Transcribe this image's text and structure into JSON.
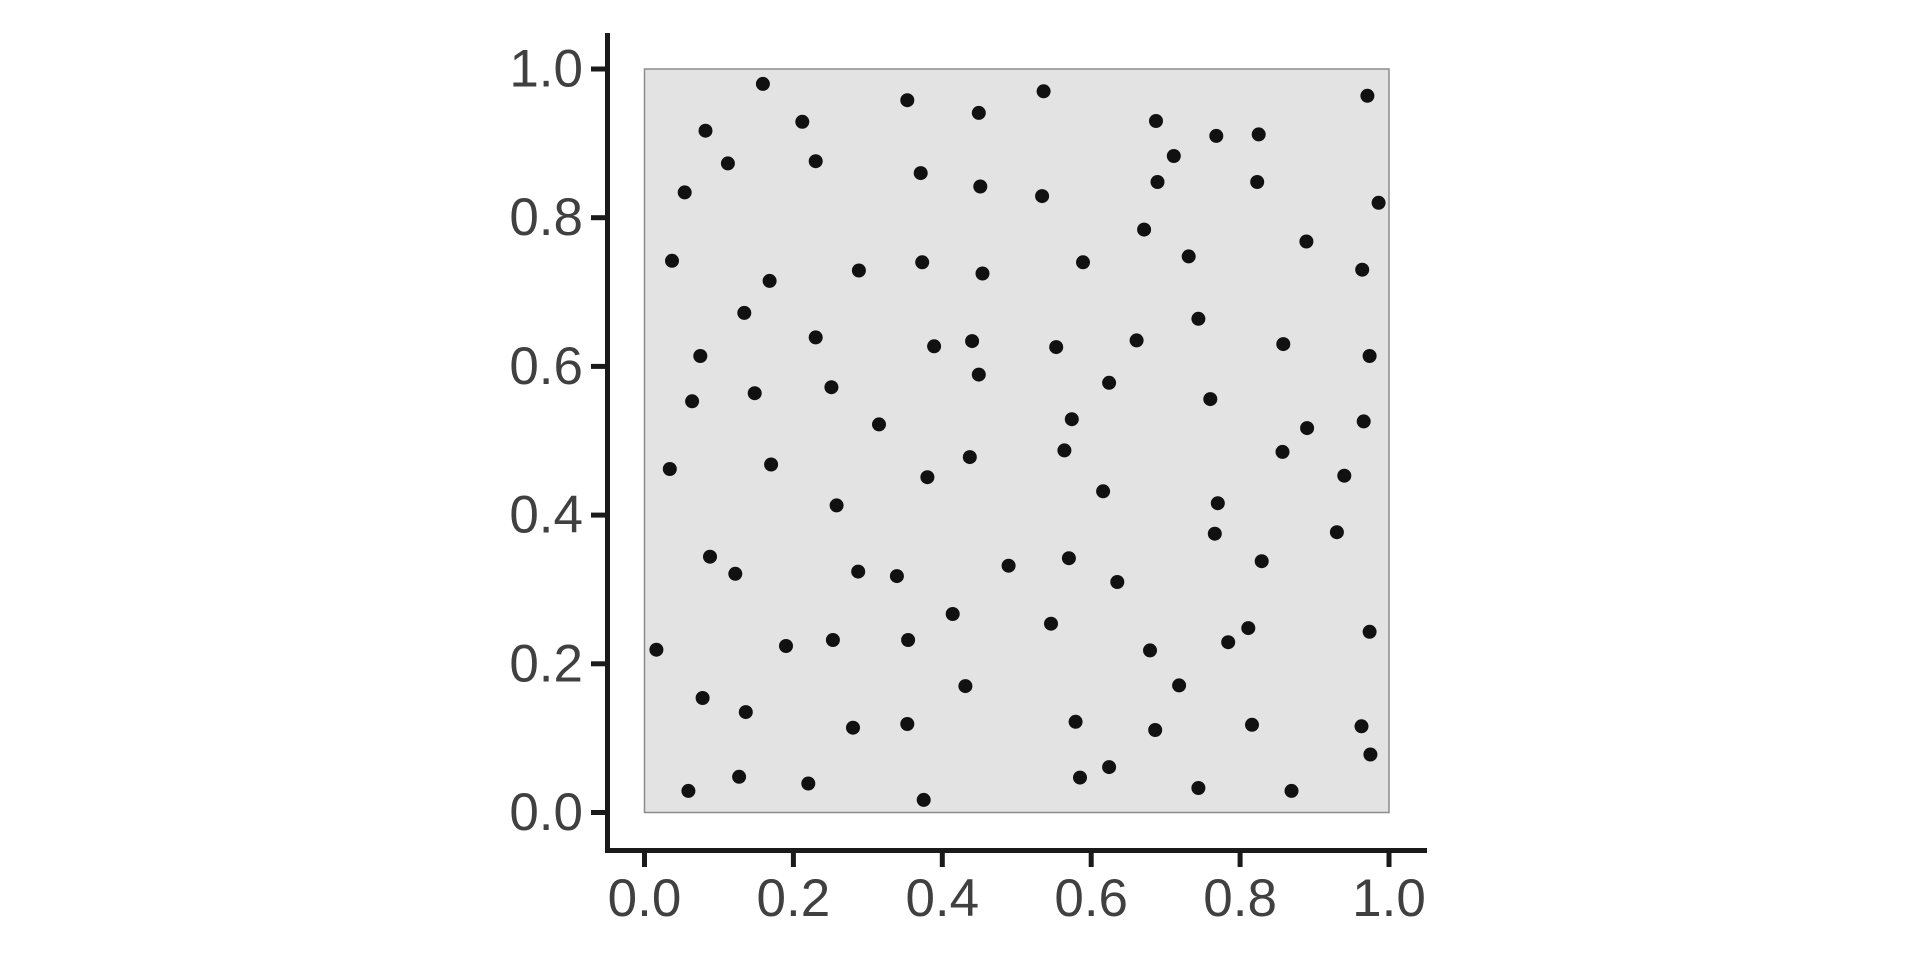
{
  "chart_data": {
    "type": "scatter",
    "title": "",
    "xlabel": "",
    "ylabel": "",
    "xlim": [
      0,
      1
    ],
    "ylim": [
      0,
      1
    ],
    "grid": false,
    "legend": null,
    "x_tick_labels": [
      "0.0",
      "0.2",
      "0.4",
      "0.6",
      "0.8",
      "1.0"
    ],
    "y_tick_labels": [
      "0.0",
      "0.2",
      "0.4",
      "0.6",
      "0.8",
      "1.0"
    ],
    "x_tick_values": [
      0,
      0.2,
      0.4,
      0.6,
      0.8,
      1.0
    ],
    "y_tick_values": [
      0,
      0.2,
      0.4,
      0.6,
      0.8,
      1.0
    ],
    "colors": {
      "panel_bg": "#e3e3e3",
      "panel_border": "#8c8c8c",
      "point": "#111111",
      "axis_line": "#1a1a1a",
      "tick_mark": "#1a1a1a",
      "tick_label": "#404040",
      "page_bg": "#ffffff"
    },
    "points": [
      [
        0.159,
        0.98
      ],
      [
        0.353,
        0.958
      ],
      [
        0.449,
        0.941
      ],
      [
        0.212,
        0.929
      ],
      [
        0.082,
        0.917
      ],
      [
        0.112,
        0.873
      ],
      [
        0.23,
        0.876
      ],
      [
        0.371,
        0.86
      ],
      [
        0.451,
        0.842
      ],
      [
        0.054,
        0.834
      ],
      [
        0.037,
        0.742
      ],
      [
        0.373,
        0.74
      ],
      [
        0.288,
        0.729
      ],
      [
        0.454,
        0.725
      ],
      [
        0.168,
        0.715
      ],
      [
        0.134,
        0.672
      ],
      [
        0.23,
        0.639
      ],
      [
        0.389,
        0.627
      ],
      [
        0.44,
        0.634
      ],
      [
        0.075,
        0.614
      ],
      [
        0.449,
        0.589
      ],
      [
        0.251,
        0.572
      ],
      [
        0.148,
        0.564
      ],
      [
        0.064,
        0.553
      ],
      [
        0.315,
        0.522
      ],
      [
        0.536,
        0.97
      ],
      [
        0.971,
        0.964
      ],
      [
        0.687,
        0.93
      ],
      [
        0.768,
        0.91
      ],
      [
        0.825,
        0.912
      ],
      [
        0.711,
        0.883
      ],
      [
        0.689,
        0.848
      ],
      [
        0.823,
        0.848
      ],
      [
        0.534,
        0.829
      ],
      [
        0.986,
        0.82
      ],
      [
        0.671,
        0.784
      ],
      [
        0.889,
        0.768
      ],
      [
        0.731,
        0.748
      ],
      [
        0.589,
        0.74
      ],
      [
        0.964,
        0.73
      ],
      [
        0.744,
        0.664
      ],
      [
        0.661,
        0.635
      ],
      [
        0.553,
        0.626
      ],
      [
        0.858,
        0.63
      ],
      [
        0.974,
        0.614
      ],
      [
        0.624,
        0.578
      ],
      [
        0.76,
        0.556
      ],
      [
        0.574,
        0.529
      ],
      [
        0.966,
        0.526
      ],
      [
        0.89,
        0.517
      ],
      [
        0.034,
        0.462
      ],
      [
        0.17,
        0.468
      ],
      [
        0.437,
        0.478
      ],
      [
        0.38,
        0.451
      ],
      [
        0.258,
        0.413
      ],
      [
        0.088,
        0.344
      ],
      [
        0.122,
        0.321
      ],
      [
        0.287,
        0.324
      ],
      [
        0.339,
        0.318
      ],
      [
        0.489,
        0.332
      ],
      [
        0.414,
        0.267
      ],
      [
        0.016,
        0.219
      ],
      [
        0.19,
        0.224
      ],
      [
        0.253,
        0.232
      ],
      [
        0.354,
        0.232
      ],
      [
        0.431,
        0.17
      ],
      [
        0.078,
        0.154
      ],
      [
        0.136,
        0.135
      ],
      [
        0.28,
        0.114
      ],
      [
        0.353,
        0.119
      ],
      [
        0.127,
        0.048
      ],
      [
        0.059,
        0.029
      ],
      [
        0.22,
        0.039
      ],
      [
        0.375,
        0.017
      ],
      [
        0.564,
        0.487
      ],
      [
        0.857,
        0.485
      ],
      [
        0.94,
        0.453
      ],
      [
        0.616,
        0.432
      ],
      [
        0.77,
        0.416
      ],
      [
        0.766,
        0.375
      ],
      [
        0.93,
        0.377
      ],
      [
        0.57,
        0.342
      ],
      [
        0.829,
        0.338
      ],
      [
        0.635,
        0.31
      ],
      [
        0.546,
        0.254
      ],
      [
        0.811,
        0.248
      ],
      [
        0.784,
        0.229
      ],
      [
        0.974,
        0.243
      ],
      [
        0.679,
        0.218
      ],
      [
        0.718,
        0.171
      ],
      [
        0.579,
        0.122
      ],
      [
        0.686,
        0.111
      ],
      [
        0.816,
        0.118
      ],
      [
        0.963,
        0.116
      ],
      [
        0.975,
        0.078
      ],
      [
        0.624,
        0.061
      ],
      [
        0.585,
        0.047
      ],
      [
        0.744,
        0.033
      ],
      [
        0.869,
        0.029
      ]
    ]
  }
}
